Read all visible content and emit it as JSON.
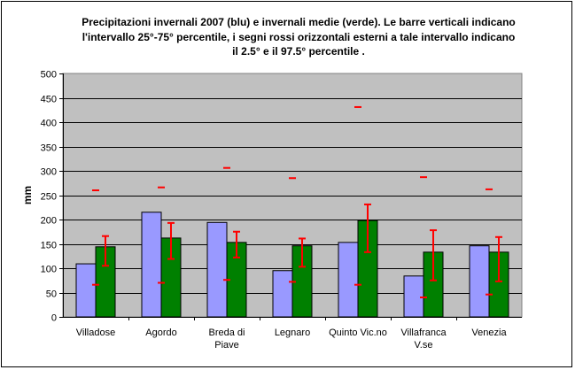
{
  "chart_data": {
    "type": "bar",
    "title": "Precipitazioni invernali 2007 (blu) e invernali medie (verde). Le barre verticali indicano l'intervallo 25°-75° percentile, i segni rossi orizzontali esterni a tale intervallo indicano il 2.5° e il 97.5° percentile .",
    "title_lines": [
      "Precipitazioni invernali 2007 (blu) e invernali medie (verde). Le barre verticali indicano",
      "l'intervallo 25°-75° percentile, i segni rossi orizzontali esterni a tale intervallo indicano",
      "il 2.5° e il 97.5° percentile ."
    ],
    "xlabel": "",
    "ylabel": "mm",
    "ylim": [
      0,
      500
    ],
    "yticks": [
      "0",
      "50",
      "100",
      "150",
      "200",
      "250",
      "300",
      "350",
      "400",
      "450",
      "500"
    ],
    "grid": true,
    "categories": [
      [
        "Villadose"
      ],
      [
        "Agordo"
      ],
      [
        "Breda di",
        "Piave"
      ],
      [
        "Legnaro"
      ],
      [
        "Quinto Vic.no"
      ],
      [
        "Villafranca",
        "V.se"
      ],
      [
        "Venezia"
      ]
    ],
    "series": [
      {
        "color": "#9999ff",
        "values": [
          109,
          215,
          194,
          95,
          153,
          84,
          146
        ]
      },
      {
        "color": "#008000",
        "values": [
          144,
          162,
          153,
          146,
          198,
          133,
          133
        ]
      }
    ],
    "whiskers": {
      "color": "#ff0000",
      "p25": [
        105,
        119,
        122,
        103,
        133,
        75,
        73
      ],
      "p75": [
        166,
        193,
        175,
        161,
        231,
        178,
        164
      ],
      "p2_5": [
        66,
        70,
        76,
        72,
        66,
        40,
        46
      ],
      "p97_5": [
        260,
        266,
        306,
        285,
        431,
        287,
        262
      ]
    },
    "colors": {
      "plot_background": "#c0c0c0",
      "grid": "#000000"
    }
  }
}
